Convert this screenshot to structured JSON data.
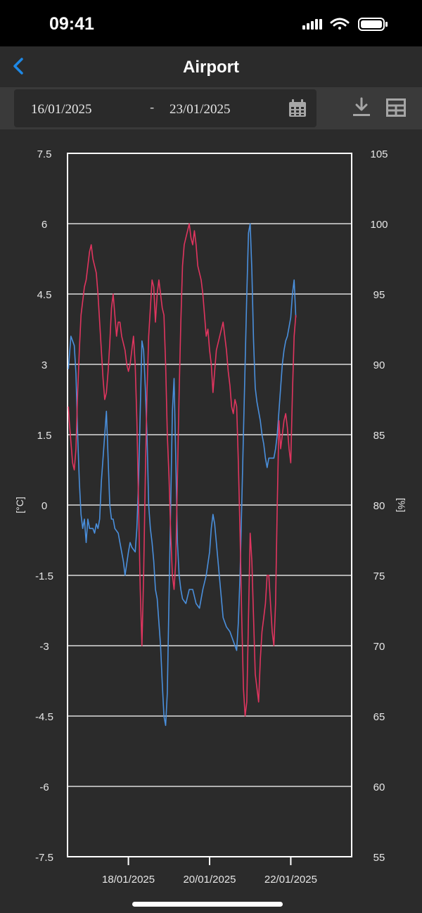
{
  "status_bar": {
    "time": "09:41",
    "icons": [
      "cellular-signal-icon",
      "wifi-icon",
      "battery-icon"
    ]
  },
  "nav": {
    "back_icon": "chevron-left-icon",
    "title": "Airport"
  },
  "toolbar": {
    "date_from": "16/01/2025",
    "date_separator": "-",
    "date_to": "23/01/2025",
    "calendar_icon": "calendar-icon",
    "download_icon": "download-icon",
    "table_icon": "table-icon"
  },
  "colors": {
    "background": "#2b2b2b",
    "accent": "#1e88e5",
    "temperature_series": "#4a8fdc",
    "humidity_series": "#e0355f",
    "grid": "#ffffff"
  },
  "chart_data": {
    "type": "line",
    "xlabel": "",
    "ylabel_left": "[°C]",
    "ylabel_right": "[%]",
    "ylim_left": [
      -7.5,
      7.5
    ],
    "ylim_right": [
      55,
      105
    ],
    "yticks_left": [
      "7.5",
      "6",
      "4.5",
      "3",
      "1.5",
      "0",
      "-1.5",
      "-3",
      "-4.5",
      "-6",
      "-7.5"
    ],
    "yticks_right": [
      "105",
      "100",
      "95",
      "90",
      "85",
      "80",
      "75",
      "70",
      "65",
      "60",
      "55"
    ],
    "xlim": [
      0,
      168
    ],
    "xticks": [
      {
        "x": 36,
        "label": "18/01/2025"
      },
      {
        "x": 84,
        "label": "20/01/2025"
      },
      {
        "x": 132,
        "label": "22/01/2025"
      }
    ],
    "grid": "horizontal",
    "series": [
      {
        "axis": "left",
        "unit": "°C",
        "color": "#4a8fdc",
        "points": [
          [
            0.5,
            2.9
          ],
          [
            2,
            3.6
          ],
          [
            4,
            3.4
          ],
          [
            5,
            2.8
          ],
          [
            6,
            1.5
          ],
          [
            7,
            0.5
          ],
          [
            8,
            -0.2
          ],
          [
            9,
            -0.5
          ],
          [
            10,
            -0.3
          ],
          [
            11,
            -0.8
          ],
          [
            12,
            -0.3
          ],
          [
            13,
            -0.5
          ],
          [
            15,
            -0.5
          ],
          [
            16,
            -0.6
          ],
          [
            17,
            -0.4
          ],
          [
            18,
            -0.5
          ],
          [
            19,
            -0.3
          ],
          [
            20,
            0.5
          ],
          [
            22,
            1.5
          ],
          [
            23,
            2.0
          ],
          [
            24,
            1.0
          ],
          [
            25,
            0.0
          ],
          [
            26,
            -0.3
          ],
          [
            27,
            -0.3
          ],
          [
            28,
            -0.5
          ],
          [
            30,
            -0.6
          ],
          [
            31,
            -0.8
          ],
          [
            33,
            -1.2
          ],
          [
            34,
            -1.5
          ],
          [
            36,
            -1.0
          ],
          [
            37,
            -0.8
          ],
          [
            38,
            -0.9
          ],
          [
            40,
            -1.0
          ],
          [
            41,
            -0.5
          ],
          [
            42,
            0.5
          ],
          [
            43,
            2.0
          ],
          [
            44,
            3.5
          ],
          [
            45,
            3.3
          ],
          [
            46,
            2.5
          ],
          [
            47,
            1.5
          ],
          [
            48,
            0.0
          ],
          [
            49,
            -0.5
          ],
          [
            50,
            -0.8
          ],
          [
            51,
            -1.2
          ],
          [
            52,
            -1.8
          ],
          [
            53,
            -2.0
          ],
          [
            54,
            -2.5
          ],
          [
            55,
            -3.0
          ],
          [
            56,
            -3.8
          ],
          [
            57,
            -4.5
          ],
          [
            58,
            -4.7
          ],
          [
            59,
            -4.0
          ],
          [
            60,
            -2.0
          ],
          [
            61,
            0.0
          ],
          [
            62,
            2.0
          ],
          [
            63,
            2.7
          ],
          [
            64,
            1.0
          ],
          [
            65,
            -0.8
          ],
          [
            66,
            -1.5
          ],
          [
            67,
            -1.8
          ],
          [
            68,
            -2.0
          ],
          [
            70,
            -2.1
          ],
          [
            72,
            -1.8
          ],
          [
            74,
            -1.8
          ],
          [
            76,
            -2.1
          ],
          [
            78,
            -2.2
          ],
          [
            80,
            -1.8
          ],
          [
            82,
            -1.5
          ],
          [
            84,
            -1.0
          ],
          [
            85,
            -0.5
          ],
          [
            86,
            -0.2
          ],
          [
            87,
            -0.4
          ],
          [
            88,
            -0.8
          ],
          [
            89,
            -1.2
          ],
          [
            90,
            -1.6
          ],
          [
            91,
            -2.0
          ],
          [
            92,
            -2.4
          ],
          [
            93,
            -2.5
          ],
          [
            94,
            -2.6
          ],
          [
            96,
            -2.7
          ],
          [
            98,
            -2.9
          ],
          [
            99,
            -3.0
          ],
          [
            100,
            -3.1
          ],
          [
            101,
            -2.5
          ],
          [
            102,
            -1.5
          ],
          [
            103,
            0.0
          ],
          [
            104,
            1.5
          ],
          [
            105,
            3.0
          ],
          [
            106,
            4.5
          ],
          [
            107,
            5.8
          ],
          [
            108,
            6.0
          ],
          [
            109,
            5.0
          ],
          [
            110,
            3.5
          ],
          [
            111,
            2.5
          ],
          [
            112,
            2.2
          ],
          [
            113,
            2.0
          ],
          [
            114,
            1.8
          ],
          [
            115,
            1.5
          ],
          [
            116,
            1.3
          ],
          [
            117,
            1.0
          ],
          [
            118,
            0.8
          ],
          [
            119,
            1.0
          ],
          [
            120,
            1.0
          ],
          [
            121,
            1.0
          ],
          [
            122,
            1.0
          ],
          [
            123,
            1.2
          ],
          [
            124,
            1.5
          ],
          [
            125,
            2.0
          ],
          [
            126,
            2.5
          ],
          [
            127,
            3.0
          ],
          [
            128,
            3.3
          ],
          [
            129,
            3.5
          ],
          [
            130,
            3.6
          ],
          [
            131,
            3.8
          ],
          [
            132,
            4.0
          ],
          [
            133,
            4.5
          ],
          [
            134,
            4.8
          ],
          [
            135,
            4.0
          ]
        ]
      },
      {
        "axis": "right",
        "unit": "%",
        "color": "#e0355f",
        "points": [
          [
            0.5,
            87
          ],
          [
            1,
            86
          ],
          [
            2,
            84.5
          ],
          [
            3,
            83
          ],
          [
            4,
            82.5
          ],
          [
            5,
            84
          ],
          [
            6,
            88
          ],
          [
            7,
            91
          ],
          [
            8,
            93.5
          ],
          [
            9,
            94.5
          ],
          [
            10,
            95.5
          ],
          [
            11,
            96
          ],
          [
            12,
            97
          ],
          [
            13,
            98
          ],
          [
            14,
            98.5
          ],
          [
            15,
            97.5
          ],
          [
            16,
            97
          ],
          [
            17,
            96.5
          ],
          [
            18,
            95
          ],
          [
            19,
            93
          ],
          [
            20,
            91
          ],
          [
            21,
            89
          ],
          [
            22,
            87.5
          ],
          [
            23,
            88
          ],
          [
            24,
            89.5
          ],
          [
            25,
            91.5
          ],
          [
            26,
            94
          ],
          [
            27,
            95
          ],
          [
            28,
            93.5
          ],
          [
            29,
            92
          ],
          [
            30,
            93
          ],
          [
            31,
            93
          ],
          [
            32,
            92
          ],
          [
            33,
            91.5
          ],
          [
            34,
            91
          ],
          [
            35,
            90
          ],
          [
            36,
            89.5
          ],
          [
            37,
            90
          ],
          [
            38,
            91
          ],
          [
            39,
            92
          ],
          [
            40,
            90
          ],
          [
            41,
            86
          ],
          [
            42,
            80
          ],
          [
            43,
            74
          ],
          [
            44,
            70
          ],
          [
            45,
            75
          ],
          [
            46,
            82
          ],
          [
            47,
            88
          ],
          [
            48,
            92
          ],
          [
            49,
            94
          ],
          [
            50,
            96
          ],
          [
            51,
            95.5
          ],
          [
            52,
            93
          ],
          [
            53,
            95
          ],
          [
            54,
            96
          ],
          [
            55,
            95
          ],
          [
            56,
            94
          ],
          [
            57,
            93.5
          ],
          [
            58,
            90
          ],
          [
            59,
            85
          ],
          [
            60,
            82
          ],
          [
            61,
            78
          ],
          [
            62,
            75
          ],
          [
            63,
            74
          ],
          [
            64,
            76
          ],
          [
            65,
            82
          ],
          [
            66,
            88
          ],
          [
            67,
            93
          ],
          [
            68,
            97
          ],
          [
            69,
            98.5
          ],
          [
            70,
            99
          ],
          [
            71,
            99.5
          ],
          [
            72,
            100
          ],
          [
            73,
            99
          ],
          [
            74,
            98.5
          ],
          [
            75,
            99.5
          ],
          [
            76,
            98.5
          ],
          [
            77,
            97
          ],
          [
            78,
            96.5
          ],
          [
            79,
            96
          ],
          [
            80,
            95
          ],
          [
            81,
            93.5
          ],
          [
            82,
            92
          ],
          [
            83,
            92.5
          ],
          [
            84,
            91
          ],
          [
            85,
            90
          ],
          [
            86,
            88
          ],
          [
            87,
            89.5
          ],
          [
            88,
            91
          ],
          [
            89,
            91.5
          ],
          [
            90,
            92
          ],
          [
            91,
            92.5
          ],
          [
            92,
            93
          ],
          [
            93,
            92
          ],
          [
            94,
            91
          ],
          [
            95,
            89.5
          ],
          [
            96,
            88.5
          ],
          [
            97,
            87
          ],
          [
            98,
            86.5
          ],
          [
            99,
            87.5
          ],
          [
            100,
            87
          ],
          [
            101,
            83
          ],
          [
            102,
            78
          ],
          [
            103,
            72
          ],
          [
            104,
            67
          ],
          [
            105,
            65
          ],
          [
            106,
            66
          ],
          [
            107,
            72
          ],
          [
            108,
            78
          ],
          [
            109,
            76
          ],
          [
            110,
            72
          ],
          [
            111,
            68
          ],
          [
            112,
            67
          ],
          [
            113,
            66
          ],
          [
            114,
            69
          ],
          [
            115,
            71
          ],
          [
            116,
            72
          ],
          [
            117,
            73
          ],
          [
            118,
            75
          ],
          [
            119,
            75
          ],
          [
            120,
            73
          ],
          [
            121,
            71
          ],
          [
            122,
            70
          ],
          [
            123,
            73
          ],
          [
            124,
            80
          ],
          [
            125,
            86
          ],
          [
            126,
            84
          ],
          [
            127,
            85
          ],
          [
            128,
            86
          ],
          [
            129,
            86.5
          ],
          [
            130,
            85.5
          ],
          [
            131,
            84
          ],
          [
            132,
            83
          ],
          [
            133,
            88
          ],
          [
            134,
            92
          ],
          [
            135,
            93.5
          ]
        ]
      }
    ]
  }
}
